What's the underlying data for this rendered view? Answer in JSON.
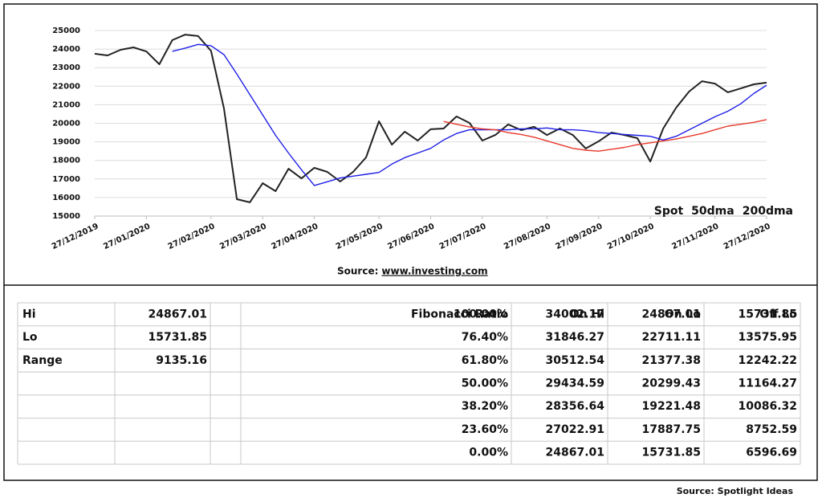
{
  "chart_data": {
    "type": "line",
    "categories": [
      "27/12/2019",
      null,
      null,
      null,
      "27/01/2020",
      null,
      null,
      null,
      null,
      "27/02/2020",
      null,
      null,
      null,
      "27/03/2020",
      null,
      null,
      null,
      "27/04/2020",
      null,
      null,
      null,
      null,
      "27/05/2020",
      null,
      null,
      null,
      "27/06/2020",
      null,
      null,
      null,
      "27/07/2020",
      null,
      null,
      null,
      null,
      "27/08/2020",
      null,
      null,
      null,
      "27/09/2020",
      null,
      null,
      null,
      "27/10/2020",
      null,
      null,
      null,
      null,
      "27/11/2020",
      null,
      null,
      null,
      "27/12/2020"
    ],
    "series": [
      {
        "name": "Spot",
        "color": "#222222",
        "values": [
          23750,
          23660,
          23960,
          24090,
          23870,
          23180,
          24480,
          24780,
          24700,
          23900,
          20800,
          15910,
          15740,
          16770,
          16340,
          17550,
          17030,
          17600,
          17380,
          16860,
          17380,
          18160,
          20110,
          18850,
          19550,
          19070,
          19680,
          19720,
          20370,
          20020,
          19070,
          19370,
          19940,
          19630,
          19810,
          19370,
          19720,
          19370,
          18640,
          19030,
          19500,
          19370,
          19200,
          17940,
          19720,
          20840,
          21710,
          22270,
          22140,
          21670,
          21880,
          22100,
          22190
        ]
      },
      {
        "name": "50dma",
        "color": "#1f1fe6",
        "values": [
          null,
          null,
          null,
          null,
          null,
          null,
          23880,
          24050,
          24250,
          24180,
          23700,
          22650,
          21550,
          20450,
          19350,
          18400,
          17500,
          16650,
          16850,
          17050,
          17150,
          17250,
          17350,
          17800,
          18150,
          18400,
          18650,
          19100,
          19450,
          19650,
          19650,
          19650,
          19650,
          19700,
          19700,
          19750,
          19650,
          19650,
          19600,
          19500,
          19450,
          19400,
          19350,
          19300,
          19100,
          19300,
          19650,
          20000,
          20350,
          20650,
          21050,
          21600,
          22050
        ]
      },
      {
        "name": "200dma",
        "color": "#e8392b",
        "values": [
          null,
          null,
          null,
          null,
          null,
          null,
          null,
          null,
          null,
          null,
          null,
          null,
          null,
          null,
          null,
          null,
          null,
          null,
          null,
          null,
          null,
          null,
          null,
          null,
          null,
          null,
          null,
          20100,
          19950,
          19800,
          19700,
          19650,
          19500,
          19400,
          19250,
          19050,
          18850,
          18650,
          18550,
          18500,
          18600,
          18700,
          18850,
          18950,
          19050,
          19150,
          19300,
          19450,
          19650,
          19850,
          19950,
          20050,
          20200
        ]
      }
    ],
    "ylim": [
      15000,
      25000
    ],
    "yticks": [
      15000,
      16000,
      17000,
      18000,
      19000,
      20000,
      21000,
      22000,
      23000,
      24000,
      25000
    ],
    "grid": true,
    "legend": "lower right",
    "source_label": "Source:",
    "source_link": "www.investing.com"
  },
  "table": {
    "left_rows": [
      {
        "label": "Hi",
        "value": "24867.01"
      },
      {
        "label": "Lo",
        "value": "15731.85"
      },
      {
        "label": "Range",
        "value": "9135.16"
      }
    ],
    "fib_header": {
      "ratio": "Fibonacci Ratio",
      "on_hi": "On Hi",
      "on_lo": "On Lo",
      "off_lo": "Off Lo"
    },
    "fib_rows": [
      [
        "100.00%",
        "34002.17",
        "24867.01",
        "15731.85"
      ],
      [
        "76.40%",
        "31846.27",
        "22711.11",
        "13575.95"
      ],
      [
        "61.80%",
        "30512.54",
        "21377.38",
        "12242.22"
      ],
      [
        "50.00%",
        "29434.59",
        "20299.43",
        "11164.27"
      ],
      [
        "38.20%",
        "28356.64",
        "19221.48",
        "10086.32"
      ],
      [
        "23.60%",
        "27022.91",
        "17887.75",
        "8752.59"
      ],
      [
        "0.00%",
        "24867.01",
        "15731.85",
        "6596.69"
      ]
    ]
  },
  "footer": "Source: Spotlight Ideas"
}
